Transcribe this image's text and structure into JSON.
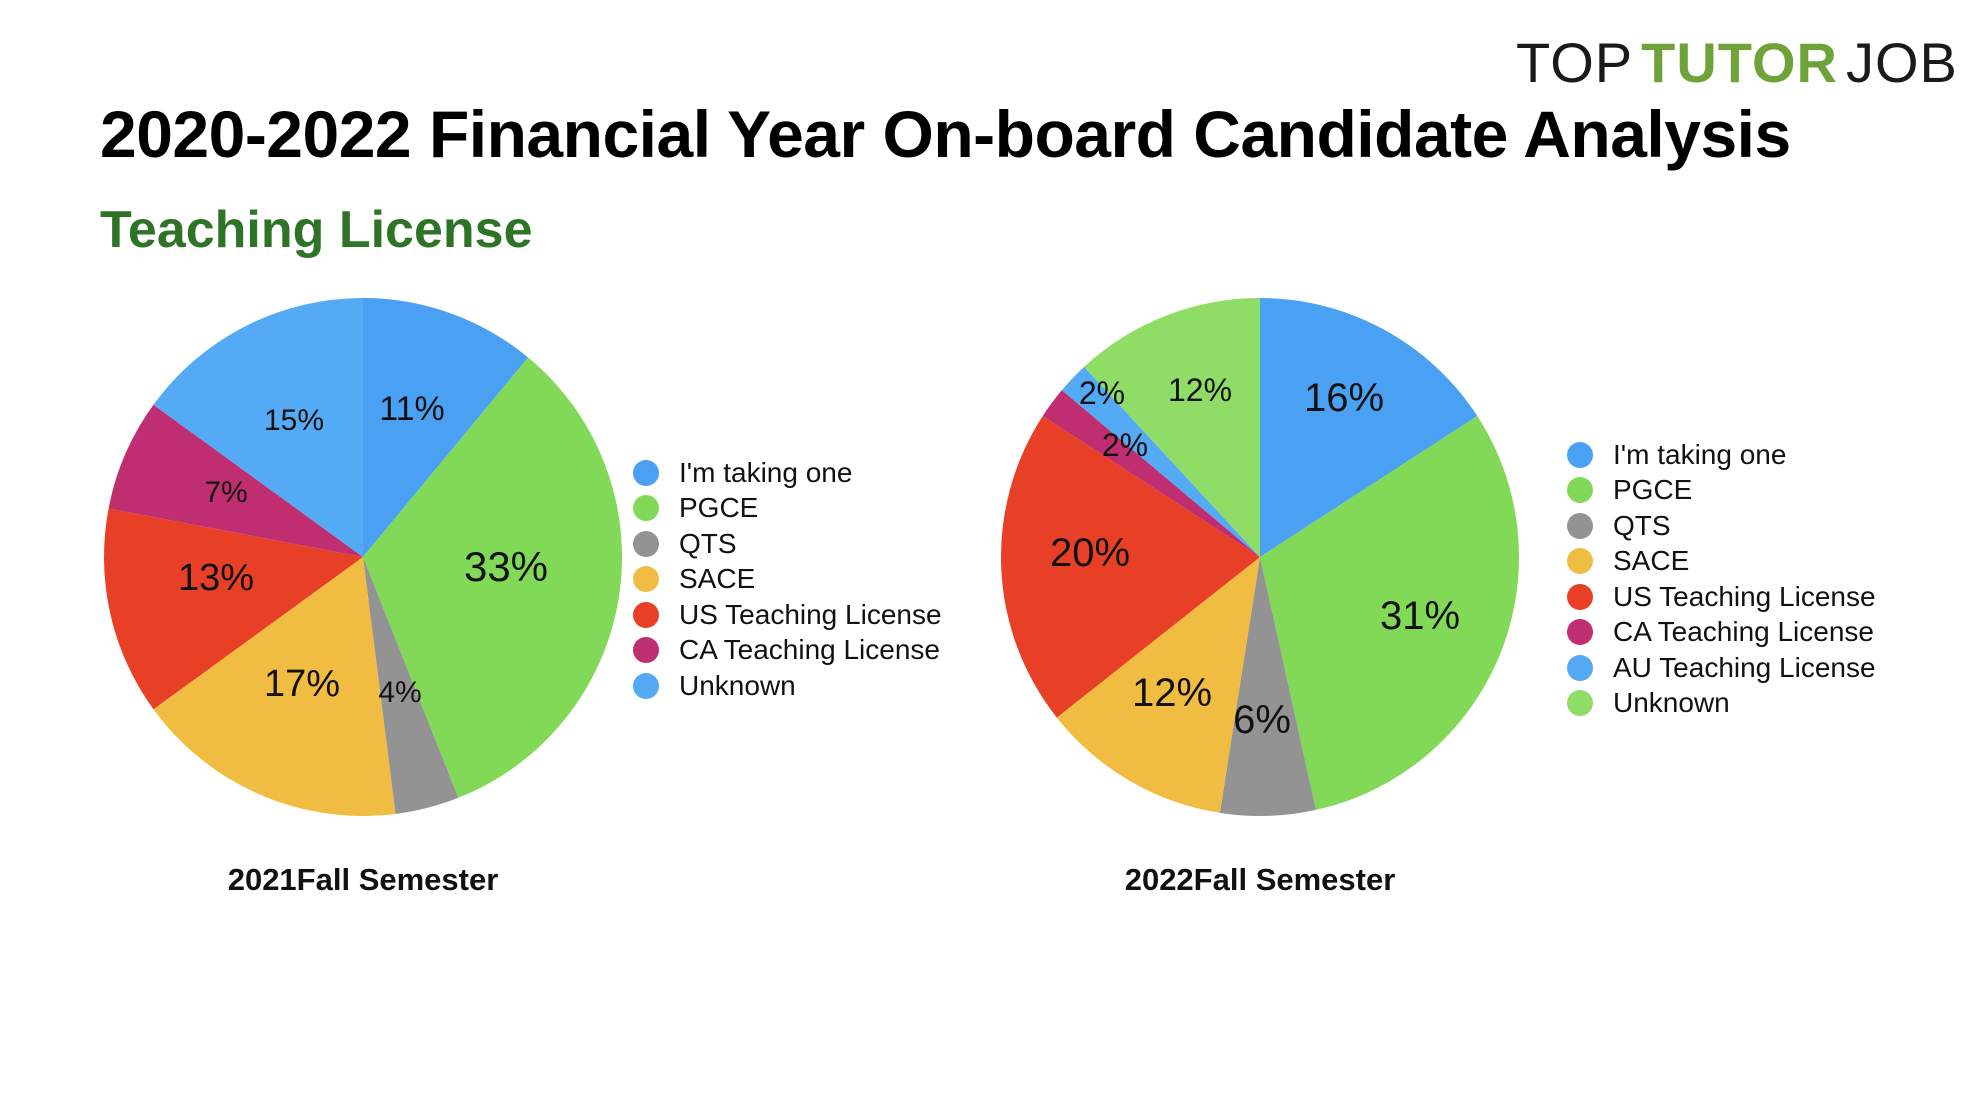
{
  "logo": {
    "top": "TOP",
    "tutor": "TUTOR",
    "job": "JOB"
  },
  "header": {
    "title": "2020-2022 Financial Year On-board Candidate Analysis",
    "subtitle": "Teaching License"
  },
  "chart_data": [
    {
      "type": "pie",
      "caption": "2021Fall Semester",
      "legend_placement": "right",
      "slices": [
        {
          "label": "I'm taking one",
          "value": 11,
          "display": "11%",
          "color": "#4aa0f2"
        },
        {
          "label": "PGCE",
          "value": 33,
          "display": "33%",
          "color": "#82d957"
        },
        {
          "label": "QTS",
          "value": 4,
          "display": "4%",
          "color": "#939393"
        },
        {
          "label": "SACE",
          "value": 17,
          "display": "17%",
          "color": "#f0bd42"
        },
        {
          "label": "US Teaching License",
          "value": 13,
          "display": "13%",
          "color": "#e84027"
        },
        {
          "label": "CA Teaching License",
          "value": 7,
          "display": "7%",
          "color": "#c02e72"
        },
        {
          "label": "Unknown",
          "value": 15,
          "display": "15%",
          "color": "#55aaf5"
        }
      ]
    },
    {
      "type": "pie",
      "caption": "2022Fall Semester",
      "legend_placement": "right",
      "slices": [
        {
          "label": "I'm taking one",
          "value": 16,
          "display": "16%",
          "color": "#4aa0f2"
        },
        {
          "label": "PGCE",
          "value": 31,
          "display": "31%",
          "color": "#82d957"
        },
        {
          "label": "QTS",
          "value": 6,
          "display": "6%",
          "color": "#939393"
        },
        {
          "label": "SACE",
          "value": 12,
          "display": "12%",
          "color": "#f0bd42"
        },
        {
          "label": "US Teaching License",
          "value": 20,
          "display": "20%",
          "color": "#e84027"
        },
        {
          "label": "CA Teaching License",
          "value": 2,
          "display": "2%",
          "color": "#c02e72"
        },
        {
          "label": "AU Teaching License",
          "value": 2,
          "display": "2%",
          "color": "#55aaf5"
        },
        {
          "label": "Unknown",
          "value": 12,
          "display": "12%",
          "color": "#8fdc66"
        }
      ]
    }
  ]
}
